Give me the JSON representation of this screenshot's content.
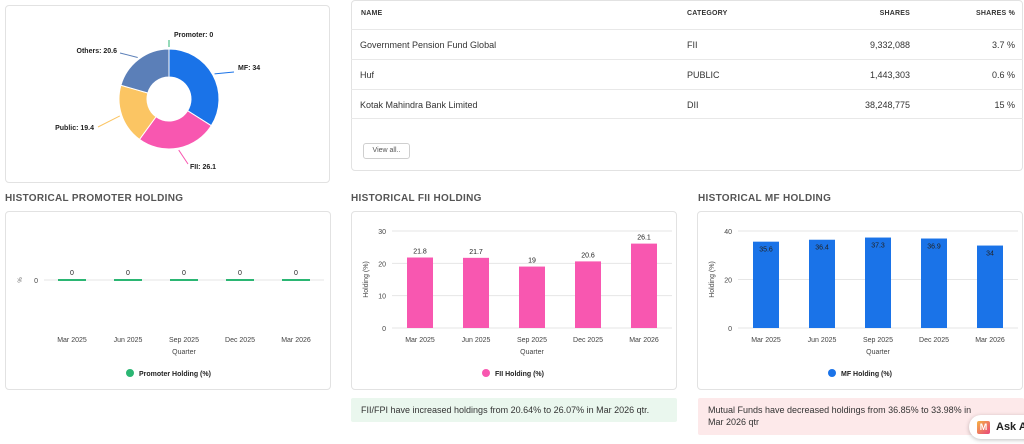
{
  "donut": {
    "segments": [
      {
        "label": "Promoter",
        "value": 0,
        "text": "Promoter: 0",
        "color": "#2bb673"
      },
      {
        "label": "MF",
        "value": 34,
        "text": "MF: 34",
        "color": "#1a73e8"
      },
      {
        "label": "FII",
        "value": 26.1,
        "text": "FII: 26.1",
        "color": "#f857b0"
      },
      {
        "label": "Public",
        "value": 19.4,
        "text": "Public: 19.4",
        "color": "#fbc563"
      },
      {
        "label": "Others",
        "value": 20.6,
        "text": "Others: 20.6",
        "color": "#5b7fb8"
      }
    ]
  },
  "table": {
    "headers": {
      "name": "NAME",
      "category": "CATEGORY",
      "shares": "SHARES",
      "shares_pct": "SHARES %"
    },
    "rows": [
      {
        "name": "Government Pension Fund Global",
        "category": "FII",
        "shares": "9,332,088",
        "pct": "3.7 %"
      },
      {
        "name": "Huf",
        "category": "PUBLIC",
        "shares": "1,443,303",
        "pct": "0.6 %"
      },
      {
        "name": "Kotak Mahindra Bank Limited",
        "category": "DII",
        "shares": "38,248,775",
        "pct": "15 %"
      }
    ],
    "view_all": "View all.."
  },
  "sections": {
    "promoter": "HISTORICAL PROMOTER HOLDING",
    "fii": "HISTORICAL FII HOLDING",
    "mf": "HISTORICAL MF HOLDING"
  },
  "chart_data": [
    {
      "type": "bar",
      "categories": [
        "Mar 2025",
        "Jun 2025",
        "Sep 2025",
        "Dec 2025",
        "Mar 2026"
      ],
      "values": [
        0,
        0,
        0,
        0,
        0
      ],
      "labels": [
        "0",
        "0",
        "0",
        "0",
        "0"
      ],
      "xlabel": "",
      "ylabel": "",
      "ylim": [
        0,
        1
      ],
      "yticks": [
        "0"
      ],
      "legend": "Promoter Holding (%)",
      "color": "#2bb673"
    },
    {
      "type": "bar",
      "categories": [
        "Mar 2025",
        "Jun 2025",
        "Sep 2025",
        "Dec 2025",
        "Mar 2026"
      ],
      "values": [
        21.8,
        21.7,
        19,
        20.6,
        26.1
      ],
      "labels": [
        "21.8",
        "21.7",
        "19",
        "20.6",
        "26.1"
      ],
      "xlabel": "Quarter",
      "ylabel": "Holding (%)",
      "ylim": [
        0,
        30
      ],
      "yticks": [
        "30",
        "20",
        "10",
        "0"
      ],
      "legend": "FII Holding (%)",
      "color": "#f857b0"
    },
    {
      "type": "bar",
      "categories": [
        "Mar 2025",
        "Jun 2025",
        "Sep 2025",
        "Dec 2025",
        "Mar 2026"
      ],
      "values": [
        35.6,
        36.4,
        37.3,
        36.9,
        34
      ],
      "labels": [
        "35.6",
        "36.4",
        "37.3",
        "36.9",
        "34"
      ],
      "xlabel": "Quarter",
      "ylabel": "Holding (%)",
      "ylim": [
        0,
        40
      ],
      "yticks": [
        "40",
        "20",
        "0"
      ],
      "legend": "MF Holding (%)",
      "color": "#1a73e8"
    }
  ],
  "promoter_xlabel": "Quarter",
  "promoter_yaxis_mark": "%",
  "insights": {
    "fii": "FII/FPI have increased holdings from 20.64% to 26.07% in Mar 2026 qtr.",
    "mf": "Mutual Funds have decreased holdings from 36.85% to 33.98% in Mar 2026 qtr"
  },
  "ask_button": {
    "icon": "M",
    "label": "Ask A"
  }
}
